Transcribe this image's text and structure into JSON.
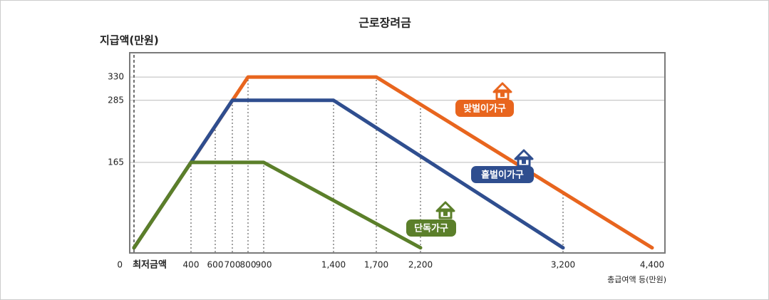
{
  "chart_data": {
    "type": "line",
    "title": "근로장려금",
    "y_label": "지급액(만원)",
    "x_label": "총급여액 등(만원)",
    "xlim": [
      0,
      4400
    ],
    "xticks": [
      {
        "value": 0,
        "label": "최저금액"
      },
      400,
      600,
      700,
      800,
      900,
      {
        "value": 1400,
        "label": "1,400"
      },
      {
        "value": 1700,
        "label": "1,700"
      },
      {
        "value": 2200,
        "label": "2,200"
      },
      {
        "value": 3200,
        "label": "3,200"
      },
      {
        "value": 4400,
        "label": "4,400"
      }
    ],
    "ylim": [
      -10,
      377
    ],
    "yticks": [
      0,
      165,
      285,
      330
    ],
    "grid": true,
    "series": [
      {
        "name": "맞벌이가구",
        "color": "#e8651e",
        "x": [
          0,
          800,
          1700,
          4400
        ],
        "values": [
          0,
          330,
          330,
          0
        ]
      },
      {
        "name": "홑벌이가구",
        "color": "#2f4e8f",
        "x": [
          0,
          700,
          1400,
          3200
        ],
        "values": [
          0,
          285,
          285,
          0
        ]
      },
      {
        "name": "단독가구",
        "color": "#5b7f2a",
        "x": [
          0,
          400,
          900,
          2200
        ],
        "values": [
          0,
          165,
          165,
          0
        ]
      }
    ]
  }
}
